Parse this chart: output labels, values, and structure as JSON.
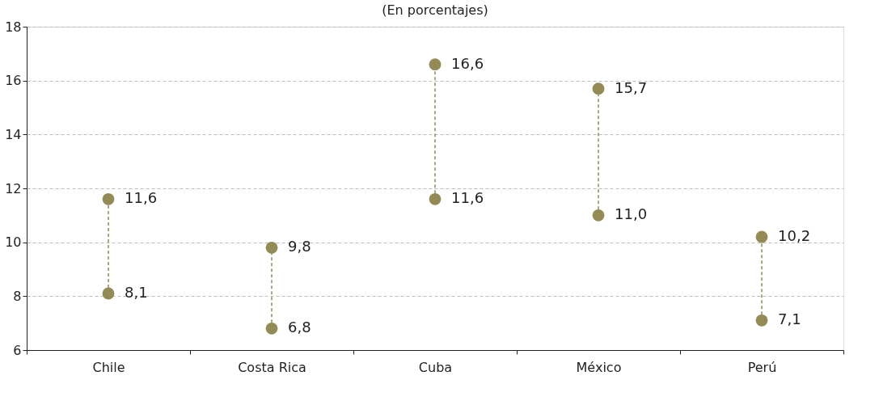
{
  "chart_data": {
    "type": "scatter",
    "title": "(En porcentajes)",
    "categories": [
      "Chile",
      "Costa Rica",
      "Cuba",
      "México",
      "Perú"
    ],
    "series": [
      {
        "color": "#938a55",
        "values": [
          11.6,
          9.8,
          16.6,
          15.7,
          10.2
        ],
        "value_labels": [
          "11,6",
          "9,8",
          "16,6",
          "15,7",
          "10,2"
        ]
      },
      {
        "color": "#938a55",
        "values": [
          8.1,
          6.8,
          11.6,
          11.0,
          7.1
        ],
        "value_labels": [
          "8,1",
          "6,8",
          "11,6",
          "11,0",
          "7,1"
        ]
      }
    ],
    "ylim": [
      6,
      18
    ],
    "yticks": [
      6,
      8,
      10,
      12,
      14,
      16,
      18
    ],
    "grid": "y",
    "marker": "circle",
    "line_style": "dashed"
  }
}
